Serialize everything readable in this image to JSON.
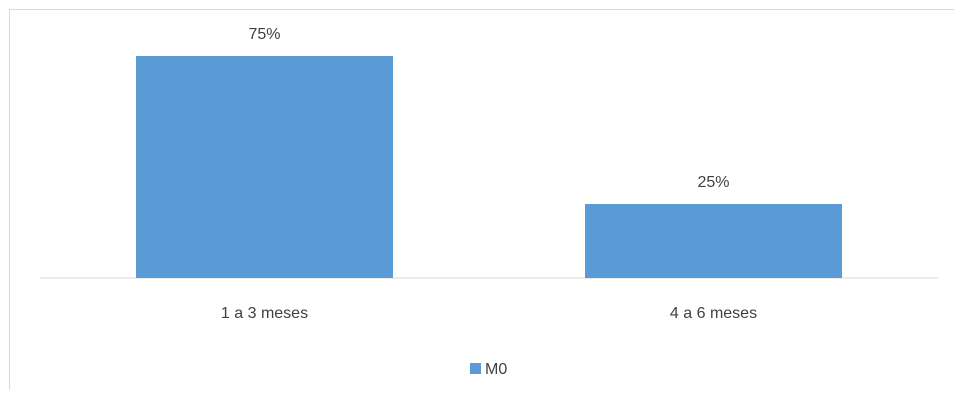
{
  "chart_data": {
    "type": "bar",
    "categories": [
      "1 a 3 meses",
      "4 a 6 meses"
    ],
    "series": [
      {
        "name": "M0",
        "values": [
          75,
          25
        ],
        "labels": [
          "75%",
          "25%"
        ],
        "color": "#5b9bd5"
      }
    ],
    "ylim": [
      0,
      100
    ],
    "grid": false,
    "legend": "bottom"
  }
}
